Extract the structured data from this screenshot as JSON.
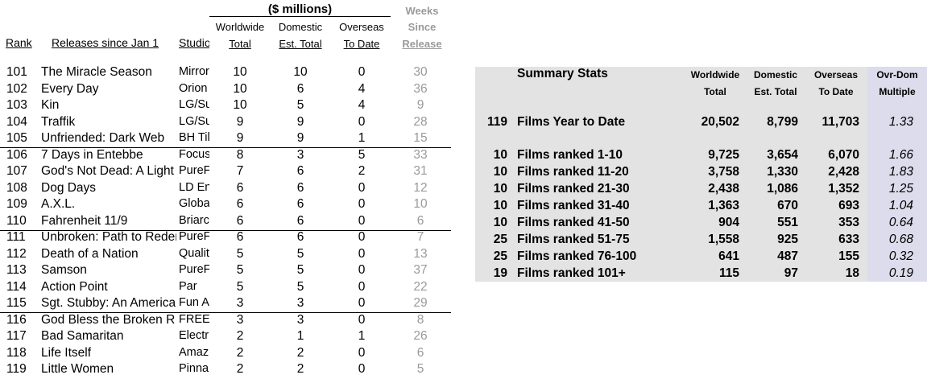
{
  "header": {
    "millions": "($ millions)",
    "weeks": [
      "Weeks",
      "Since",
      "Release"
    ],
    "worldwide": [
      "Worldwide",
      "Total"
    ],
    "domestic": [
      "Domestic",
      "Est. Total"
    ],
    "overseas": [
      "Overseas",
      "To Date"
    ],
    "rank": "Rank",
    "releases": "Releases since Jan 1",
    "studio": "Studio"
  },
  "films": [
    {
      "rank": "101",
      "title": "The Miracle Season",
      "studio": "Mirror",
      "ww": "10",
      "dom": "10",
      "ovs": "0",
      "wk": "30"
    },
    {
      "rank": "102",
      "title": "Every Day",
      "studio": "Orion",
      "ww": "10",
      "dom": "6",
      "ovs": "4",
      "wk": "36"
    },
    {
      "rank": "103",
      "title": "Kin",
      "studio": "LG/Su",
      "ww": "10",
      "dom": "5",
      "ovs": "4",
      "wk": "9"
    },
    {
      "rank": "104",
      "title": "Traffik",
      "studio": "LG/Su",
      "ww": "9",
      "dom": "9",
      "ovs": "0",
      "wk": "28"
    },
    {
      "rank": "105",
      "title": "Unfriended: Dark Web",
      "studio": "BH Til",
      "ww": "9",
      "dom": "9",
      "ovs": "1",
      "wk": "15"
    },
    {
      "rank": "106",
      "title": "7 Days in Entebbe",
      "studio": "Focus",
      "ww": "8",
      "dom": "3",
      "ovs": "5",
      "wk": "33"
    },
    {
      "rank": "107",
      "title": "God's Not Dead: A Light",
      "studio": "PureF",
      "ww": "7",
      "dom": "6",
      "ovs": "2",
      "wk": "31"
    },
    {
      "rank": "108",
      "title": "Dog Days",
      "studio": "LD En",
      "ww": "6",
      "dom": "6",
      "ovs": "0",
      "wk": "12"
    },
    {
      "rank": "109",
      "title": "A.X.L.",
      "studio": "Globa",
      "ww": "6",
      "dom": "6",
      "ovs": "0",
      "wk": "10"
    },
    {
      "rank": "110",
      "title": "Fahrenheit 11/9",
      "studio": "Briarc",
      "ww": "6",
      "dom": "6",
      "ovs": "0",
      "wk": "6"
    },
    {
      "rank": "111",
      "title": "Unbroken: Path to Redem",
      "studio": "PureF",
      "ww": "6",
      "dom": "6",
      "ovs": "0",
      "wk": "7"
    },
    {
      "rank": "112",
      "title": "Death of a Nation",
      "studio": "Qualit",
      "ww": "5",
      "dom": "5",
      "ovs": "0",
      "wk": "13"
    },
    {
      "rank": "113",
      "title": "Samson",
      "studio": "PureF",
      "ww": "5",
      "dom": "5",
      "ovs": "0",
      "wk": "37"
    },
    {
      "rank": "114",
      "title": "Action Point",
      "studio": "Par",
      "ww": "5",
      "dom": "5",
      "ovs": "0",
      "wk": "22"
    },
    {
      "rank": "115",
      "title": "Sgt. Stubby: An America",
      "studio": "Fun A",
      "ww": "3",
      "dom": "3",
      "ovs": "0",
      "wk": "29"
    },
    {
      "rank": "116",
      "title": "God Bless the Broken R",
      "studio": "FREE",
      "ww": "3",
      "dom": "3",
      "ovs": "0",
      "wk": "8"
    },
    {
      "rank": "117",
      "title": "Bad Samaritan",
      "studio": "Electr",
      "ww": "2",
      "dom": "1",
      "ovs": "1",
      "wk": "26"
    },
    {
      "rank": "118",
      "title": "Life Itself",
      "studio": "Amaz",
      "ww": "2",
      "dom": "2",
      "ovs": "0",
      "wk": "6"
    },
    {
      "rank": "119",
      "title": "Little Women",
      "studio": "Pinna",
      "ww": "2",
      "dom": "2",
      "ovs": "0",
      "wk": "5"
    }
  ],
  "summary": {
    "title": "Summary Stats",
    "headers": {
      "worldwide": [
        "Worldwide",
        "Total"
      ],
      "domestic": [
        "Domestic",
        "Est. Total"
      ],
      "overseas": [
        "Overseas",
        "To Date"
      ],
      "multiple": [
        "Ovr-Dom",
        "Multiple"
      ]
    },
    "rows": [
      {
        "n": "119",
        "label": "Films Year to Date",
        "ww": "20,502",
        "dom": "8,799",
        "ovs": "11,703",
        "mul": "1.33"
      },
      {
        "n": "10",
        "label": "Films ranked 1-10",
        "ww": "9,725",
        "dom": "3,654",
        "ovs": "6,070",
        "mul": "1.66"
      },
      {
        "n": "10",
        "label": "Films ranked 11-20",
        "ww": "3,758",
        "dom": "1,330",
        "ovs": "2,428",
        "mul": "1.83"
      },
      {
        "n": "10",
        "label": "Films ranked 21-30",
        "ww": "2,438",
        "dom": "1,086",
        "ovs": "1,352",
        "mul": "1.25"
      },
      {
        "n": "10",
        "label": "Films ranked 31-40",
        "ww": "1,363",
        "dom": "670",
        "ovs": "693",
        "mul": "1.04"
      },
      {
        "n": "10",
        "label": "Films ranked 41-50",
        "ww": "904",
        "dom": "551",
        "ovs": "353",
        "mul": "0.64"
      },
      {
        "n": "25",
        "label": "Films ranked 51-75",
        "ww": "1,558",
        "dom": "925",
        "ovs": "633",
        "mul": "0.68"
      },
      {
        "n": "25",
        "label": "Films ranked 76-100",
        "ww": "641",
        "dom": "487",
        "ovs": "155",
        "mul": "0.32"
      },
      {
        "n": "19",
        "label": "Films ranked 101+",
        "ww": "115",
        "dom": "97",
        "ovs": "18",
        "mul": "0.19"
      }
    ]
  }
}
